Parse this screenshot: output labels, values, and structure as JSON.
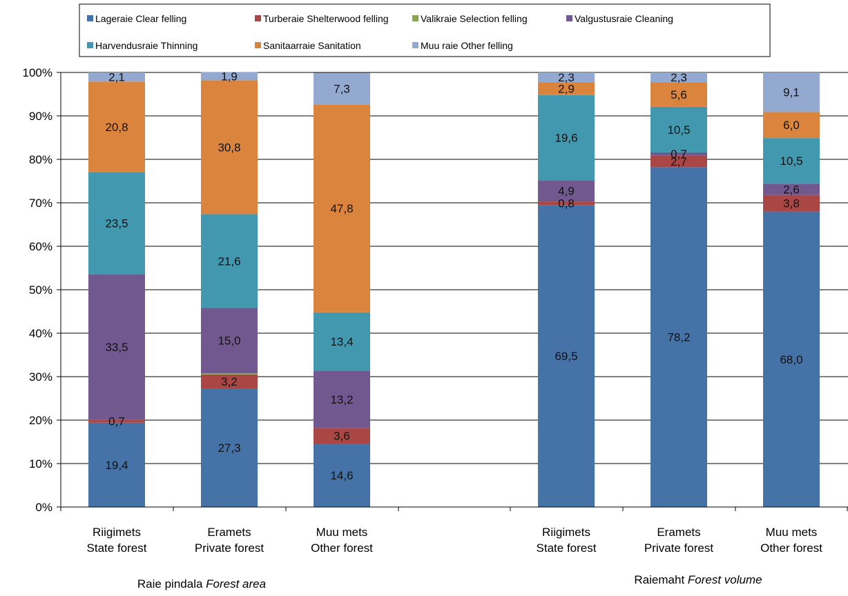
{
  "chart_data": {
    "type": "bar",
    "stacked": true,
    "percent": true,
    "ylim": [
      0,
      100
    ],
    "yticks": [
      "0%",
      "10%",
      "20%",
      "30%",
      "40%",
      "50%",
      "60%",
      "70%",
      "80%",
      "90%",
      "100%"
    ],
    "grid": true,
    "legend_position": "top",
    "categories": [
      [
        "Riigimets",
        "State forest"
      ],
      [
        "Eramets",
        "Private forest"
      ],
      [
        "Muu mets",
        "Other forest"
      ],
      [
        "Riigimets",
        "State forest"
      ],
      [
        "Eramets",
        "Private forest"
      ],
      [
        "Muu mets",
        "Other forest"
      ]
    ],
    "groups": [
      {
        "label_main": "Raie pindala ",
        "label_italic": "Forest area"
      },
      {
        "label_main": "Raiemaht  ",
        "label_italic": "Forest volume"
      }
    ],
    "series": [
      {
        "name": "Lageraie Clear felling",
        "color": "#4572A7",
        "values": [
          19.4,
          27.3,
          14.6,
          69.5,
          78.2,
          68.0
        ],
        "labels": [
          "19,4",
          "27,3",
          "14,6",
          "69,5",
          "78,2",
          "68,0"
        ]
      },
      {
        "name": "Turberaie Shelterwood felling",
        "color": "#AA4643",
        "values": [
          0.7,
          3.2,
          3.6,
          0.8,
          2.7,
          3.8
        ],
        "labels": [
          "0,7",
          "3,2",
          "3,6",
          "0,8",
          "2,7",
          "3,8"
        ]
      },
      {
        "name": "Valikraie Selection felling",
        "color": "#89A54E",
        "values": [
          0.0,
          0.3,
          0.0,
          0.0,
          0.0,
          0.0
        ],
        "labels": [
          "",
          "",
          "",
          "",
          "",
          ""
        ]
      },
      {
        "name": "Valgustusraie Cleaning",
        "color": "#71588F",
        "values": [
          33.5,
          15.0,
          13.2,
          4.9,
          0.7,
          2.6
        ],
        "labels": [
          "33,5",
          "15,0",
          "13,2",
          "4,9",
          "0,7",
          "2,6"
        ]
      },
      {
        "name": "Harvendusraie Thinning",
        "color": "#4198AF",
        "values": [
          23.5,
          21.6,
          13.4,
          19.6,
          10.5,
          10.5
        ],
        "labels": [
          "23,5",
          "21,6",
          "13,4",
          "19,6",
          "10,5",
          "10,5"
        ]
      },
      {
        "name": "Sanitaarraie Sanitation",
        "color": "#DB843D",
        "values": [
          20.8,
          30.8,
          47.8,
          2.9,
          5.6,
          6.0
        ],
        "labels": [
          "20,8",
          "30,8",
          "47,8",
          "2,9",
          "5,6",
          "6,0"
        ]
      },
      {
        "name": "Muu raie Other felling",
        "color": "#93A9CF",
        "values": [
          2.1,
          1.9,
          7.3,
          2.3,
          2.3,
          9.1
        ],
        "labels": [
          "2,1",
          "1,9",
          "7,3",
          "2,3",
          "2,3",
          "9,1"
        ]
      }
    ]
  }
}
